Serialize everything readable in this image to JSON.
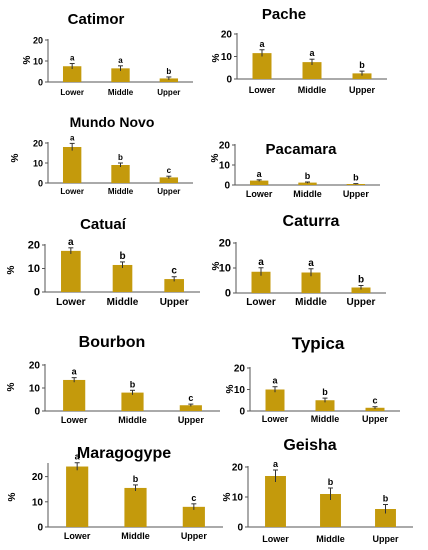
{
  "bar_color": "#c49a0c",
  "axis_color": "#555555",
  "chart_data": [
    {
      "type": "bar",
      "title": "Catimor",
      "ylabel": "%",
      "categories": [
        "Lower",
        "Middle",
        "Upper"
      ],
      "values": [
        7.5,
        6.5,
        1.7
      ],
      "errors": [
        1.3,
        1.2,
        0.7
      ],
      "letters": [
        "a",
        "a",
        "b"
      ],
      "ylim": [
        0,
        20
      ],
      "yticks": [
        "0",
        "10",
        "20"
      ]
    },
    {
      "type": "bar",
      "title": "Pache",
      "ylabel": "%",
      "categories": [
        "Lower",
        "Middle",
        "Upper"
      ],
      "values": [
        11.5,
        7.5,
        2.5
      ],
      "errors": [
        1.5,
        1.3,
        1.0
      ],
      "letters": [
        "a",
        "a",
        "b"
      ],
      "ylim": [
        0,
        20
      ],
      "yticks": [
        "0",
        "10",
        "20"
      ]
    },
    {
      "type": "bar",
      "title": "Mundo Novo",
      "ylabel": "%",
      "categories": [
        "Lower",
        "Middle",
        "Upper"
      ],
      "values": [
        18,
        9,
        2.8
      ],
      "errors": [
        1.8,
        1.0,
        0.6
      ],
      "letters": [
        "a",
        "b",
        "c"
      ],
      "ylim": [
        0,
        20
      ],
      "yticks": [
        "0",
        "10",
        "20"
      ]
    },
    {
      "type": "bar",
      "title": "Pacamara",
      "ylabel": "%",
      "categories": [
        "Lower",
        "Middle",
        "Upper"
      ],
      "values": [
        2.2,
        1.2,
        0.5
      ],
      "errors": [
        0.4,
        0.3,
        0.2
      ],
      "letters": [
        "a",
        "b",
        "b"
      ],
      "ylim": [
        0,
        20
      ],
      "yticks": [
        "0",
        "10",
        "20"
      ]
    },
    {
      "type": "bar",
      "title": "Catuaí",
      "ylabel": "%",
      "categories": [
        "Lower",
        "Middle",
        "Upper"
      ],
      "values": [
        17.5,
        11.5,
        5.5
      ],
      "errors": [
        1.3,
        1.3,
        1.0
      ],
      "letters": [
        "a",
        "b",
        "c"
      ],
      "ylim": [
        0,
        20
      ],
      "yticks": [
        "0",
        "10",
        "20"
      ]
    },
    {
      "type": "bar",
      "title": "Caturra",
      "ylabel": "%",
      "categories": [
        "Lower",
        "Middle",
        "Upper"
      ],
      "values": [
        8.5,
        8.2,
        2.2
      ],
      "errors": [
        1.6,
        1.5,
        0.8
      ],
      "letters": [
        "a",
        "a",
        "b"
      ],
      "ylim": [
        0,
        20
      ],
      "yticks": [
        "0",
        "10",
        "20"
      ]
    },
    {
      "type": "bar",
      "title": "Bourbon",
      "ylabel": "%",
      "categories": [
        "Lower",
        "Middle",
        "Upper"
      ],
      "values": [
        13.5,
        8,
        2.5
      ],
      "errors": [
        1.0,
        1.0,
        0.5
      ],
      "letters": [
        "a",
        "b",
        "c"
      ],
      "ylim": [
        0,
        20
      ],
      "yticks": [
        "0",
        "10",
        "20"
      ]
    },
    {
      "type": "bar",
      "title": "Typica",
      "ylabel": "%",
      "categories": [
        "Lower",
        "Middle",
        "Upper"
      ],
      "values": [
        10,
        5,
        1.5
      ],
      "errors": [
        1.3,
        1.0,
        0.5
      ],
      "letters": [
        "a",
        "b",
        "c"
      ],
      "ylim": [
        0,
        20
      ],
      "yticks": [
        "0",
        "10",
        "20"
      ]
    },
    {
      "type": "bar",
      "title": "Maragogype",
      "ylabel": "%",
      "categories": [
        "Lower",
        "Middle",
        "Upper"
      ],
      "values": [
        24,
        15.5,
        8
      ],
      "errors": [
        1.5,
        1.2,
        1.2
      ],
      "letters": [
        "a",
        "b",
        "c"
      ],
      "ylim": [
        0,
        25
      ],
      "yticks": [
        "0",
        "10",
        "20"
      ]
    },
    {
      "type": "bar",
      "title": "Geisha",
      "ylabel": "%",
      "categories": [
        "Lower",
        "Middle",
        "Upper"
      ],
      "values": [
        17,
        11,
        6
      ],
      "errors": [
        2.0,
        2.0,
        1.5
      ],
      "letters": [
        "a",
        "b",
        "b"
      ],
      "ylim": [
        0,
        20
      ],
      "yticks": [
        "0",
        "10",
        "20"
      ]
    }
  ]
}
